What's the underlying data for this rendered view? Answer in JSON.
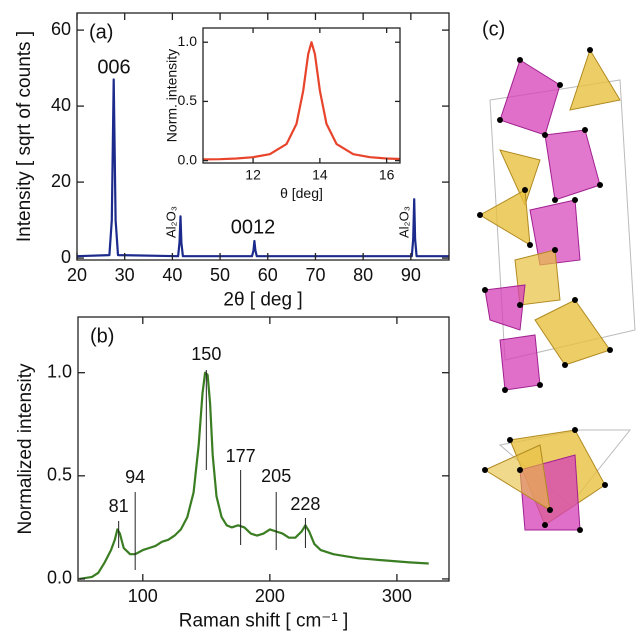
{
  "chart_data": [
    {
      "type": "line",
      "panel": "(a)",
      "x_label": "2θ  [ deg ]",
      "y_label": "Intensity  [ sqrt of counts ]",
      "xlim": [
        20,
        98
      ],
      "ylim": [
        -0.5,
        64.5
      ],
      "xticks": [
        20,
        30,
        40,
        50,
        60,
        70,
        80,
        90
      ],
      "yticks": [
        0,
        20,
        40,
        60
      ],
      "color": "#1c2a8c",
      "annotations": [
        "006",
        "Al₂O₃",
        "0012",
        "Al₂O₃"
      ],
      "x": [
        20,
        26.8,
        27.3,
        27.7,
        28.1,
        28.6,
        41.2,
        41.5,
        41.7,
        41.9,
        42.2,
        56.7,
        57.0,
        57.2,
        57.4,
        57.7,
        90.2,
        90.5,
        90.7,
        90.9,
        91.2,
        98
      ],
      "values": [
        0.5,
        0.8,
        10,
        47,
        10,
        0.8,
        0.5,
        4,
        11,
        4,
        0.5,
        0.5,
        2,
        4.5,
        2,
        0.5,
        0.5,
        5,
        15.5,
        5,
        0.5,
        0.5
      ]
    },
    {
      "type": "line",
      "x_label": "θ [deg]",
      "y_label": "Norm. intensity",
      "xlim": [
        10.5,
        16.4
      ],
      "ylim": [
        -0.02,
        1.12
      ],
      "xticks": [
        12,
        14,
        16
      ],
      "yticks": [
        {
          "value": 0,
          "label": "0.0"
        },
        {
          "value": 0.5,
          "label": "0.5"
        },
        {
          "value": 1,
          "label": "1.0"
        }
      ],
      "color": "#e8442c",
      "x": [
        10.5,
        11,
        11.5,
        12,
        12.5,
        13,
        13.3,
        13.5,
        13.65,
        13.75,
        13.85,
        14,
        14.2,
        14.5,
        15,
        15.5,
        16,
        16.4
      ],
      "values": [
        0.01,
        0.012,
        0.018,
        0.029,
        0.054,
        0.14,
        0.31,
        0.59,
        0.9,
        1,
        0.9,
        0.59,
        0.31,
        0.14,
        0.054,
        0.029,
        0.018,
        0.014
      ]
    },
    {
      "type": "line",
      "panel": "(b)",
      "x_label": "Raman shift  [ cm⁻¹ ]",
      "y_label": "Normalized intensity",
      "xlim": [
        49,
        341
      ],
      "ylim": [
        -0.01,
        1.27
      ],
      "xticks": [
        100,
        200,
        300
      ],
      "yticks": [
        {
          "value": 0,
          "label": "0.0"
        },
        {
          "value": 0.5,
          "label": "0.5"
        },
        {
          "value": 1,
          "label": "1.0"
        }
      ],
      "color": "#3a7d22",
      "peaks": [
        81,
        94,
        150,
        177,
        205,
        228
      ],
      "x": [
        50,
        60,
        65,
        70,
        75,
        78,
        80,
        82,
        85,
        90,
        94,
        100,
        105,
        110,
        115,
        120,
        125,
        130,
        135,
        140,
        144,
        147,
        149,
        151,
        153,
        155,
        158,
        162,
        166,
        170,
        175,
        180,
        185,
        190,
        195,
        200,
        205,
        210,
        215,
        220,
        225,
        228,
        231,
        235,
        240,
        250,
        260,
        270,
        280,
        290,
        300,
        310,
        325
      ],
      "values": [
        0,
        0.01,
        0.03,
        0.08,
        0.14,
        0.19,
        0.24,
        0.22,
        0.15,
        0.12,
        0.12,
        0.14,
        0.15,
        0.16,
        0.18,
        0.19,
        0.21,
        0.24,
        0.3,
        0.42,
        0.65,
        0.9,
        1,
        0.99,
        0.85,
        0.6,
        0.4,
        0.3,
        0.26,
        0.25,
        0.26,
        0.25,
        0.22,
        0.21,
        0.22,
        0.24,
        0.23,
        0.22,
        0.2,
        0.2,
        0.23,
        0.26,
        0.23,
        0.17,
        0.14,
        0.12,
        0.11,
        0.1,
        0.095,
        0.09,
        0.085,
        0.08,
        0.075
      ]
    }
  ],
  "structure": {
    "label": "(c)"
  }
}
